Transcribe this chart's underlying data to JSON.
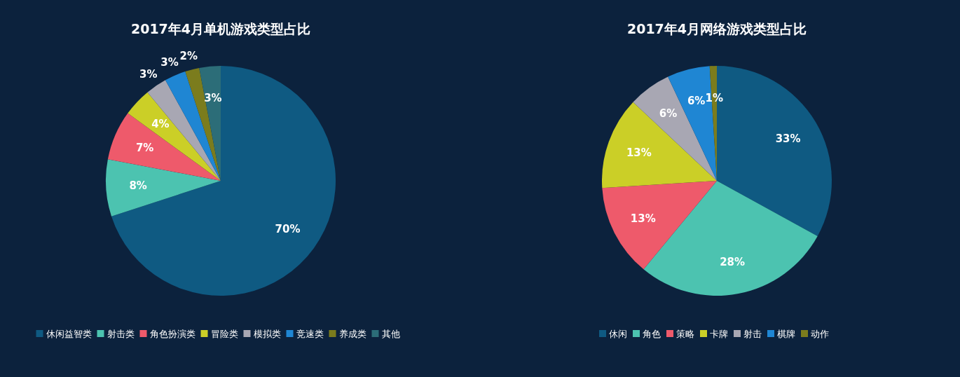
{
  "chart_data": [
    {
      "type": "pie",
      "title": "2017年4月单机游戏类型占比",
      "categories": [
        "休闲益智类",
        "射击类",
        "角色扮演类",
        "冒险类",
        "模拟类",
        "竞速类",
        "养成类",
        "其他"
      ],
      "values": [
        70,
        8,
        7,
        4,
        3,
        3,
        2,
        3
      ],
      "value_labels": [
        "70%",
        "8%",
        "7%",
        "4%",
        "3%",
        "3%",
        "2%",
        "3%"
      ],
      "colors": [
        "#0f5a82",
        "#4cc3b0",
        "#ee5a6b",
        "#cbcf27",
        "#a8a7b3",
        "#1f86d3",
        "#7b7c1d",
        "#2c6d78"
      ],
      "legend": "bottom"
    },
    {
      "type": "pie",
      "title": "2017年4月网络游戏类型占比",
      "categories": [
        "休闲",
        "角色",
        "策略",
        "卡牌",
        "射击",
        "棋牌",
        "动作"
      ],
      "values": [
        33,
        28,
        13,
        13,
        6,
        6,
        1
      ],
      "value_labels": [
        "33%",
        "28%",
        "13%",
        "13%",
        "6%",
        "6%",
        "1%"
      ],
      "colors": [
        "#0f5a82",
        "#4cc3b0",
        "#ee5a6b",
        "#cbcf27",
        "#a8a7b3",
        "#1f86d3",
        "#7b7c1d"
      ],
      "legend": "bottom"
    }
  ]
}
